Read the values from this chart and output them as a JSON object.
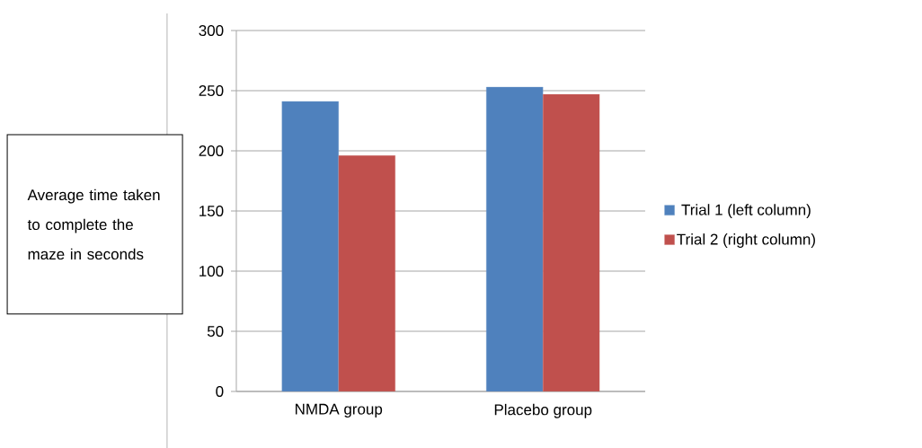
{
  "chart_data": {
    "type": "bar",
    "ylabel": "Average time taken to complete the maze in seconds",
    "categories": [
      "NMDA group",
      "Placebo group"
    ],
    "series": [
      {
        "name": "Trial 1 (left column)",
        "color": "#4f81bd",
        "values": [
          241,
          253
        ]
      },
      {
        "name": "Trial 2 (right column)",
        "color": "#c0504d",
        "values": [
          196,
          247
        ]
      }
    ],
    "ylim": [
      0,
      300
    ],
    "yticks": [
      0,
      50,
      100,
      150,
      200,
      250,
      300
    ],
    "grid": "y",
    "legend": "right"
  }
}
